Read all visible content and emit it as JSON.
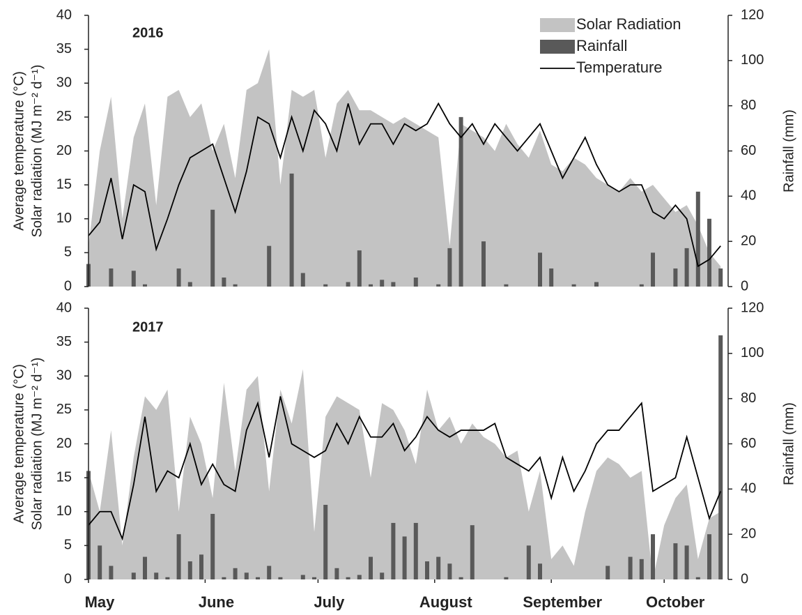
{
  "chart_data": [
    {
      "type": "combo",
      "title": "2016",
      "y_label": [
        "Average temperature (°C)",
        "Solar radiation (MJ m⁻² d⁻¹)"
      ],
      "y2_label": "Rainfall (mm)",
      "x": [
        0,
        3,
        6,
        9,
        12,
        15,
        18,
        21,
        24,
        27,
        30,
        33,
        36,
        39,
        42,
        45,
        48,
        51,
        54,
        57,
        60,
        63,
        66,
        69,
        72,
        75,
        78,
        81,
        84,
        87,
        90,
        93,
        96,
        99,
        102,
        105,
        108,
        111,
        114,
        117,
        120,
        123,
        126,
        129,
        132,
        135,
        138,
        141,
        144,
        147,
        150,
        153,
        156,
        159,
        162,
        165,
        168
      ],
      "xlim": [
        0,
        170
      ],
      "ylim": [
        0,
        40
      ],
      "yticks": [
        0,
        5,
        10,
        15,
        20,
        25,
        30,
        35,
        40
      ],
      "y2lim": [
        0,
        120
      ],
      "y2ticks": [
        0,
        20,
        40,
        60,
        80,
        100,
        120
      ],
      "legend": "top-right",
      "series": [
        {
          "name": "Solar Radiation",
          "type": "area",
          "color": "#c3c3c3",
          "axis": "y",
          "values": [
            6,
            20,
            28,
            10,
            22,
            27,
            12,
            28,
            29,
            25,
            27,
            20,
            24,
            16,
            29,
            30,
            35,
            15,
            29,
            28,
            29,
            19,
            27,
            29,
            26,
            26,
            25,
            24,
            25,
            24,
            23,
            22,
            6,
            24,
            23,
            22,
            20,
            24,
            21,
            19,
            23,
            18,
            17,
            19,
            18,
            16,
            15,
            14,
            16,
            14,
            15,
            13,
            11,
            12,
            9,
            5,
            3
          ]
        },
        {
          "name": "Rainfall",
          "type": "bar",
          "color": "#595959",
          "axis": "y2",
          "values": [
            10,
            0,
            8,
            0,
            7,
            1,
            0,
            0,
            8,
            2,
            0,
            34,
            4,
            1,
            0,
            0,
            18,
            0,
            50,
            6,
            0,
            1,
            0,
            2,
            16,
            1,
            3,
            2,
            0,
            4,
            0,
            1,
            17,
            75,
            0,
            20,
            0,
            1,
            0,
            0,
            15,
            8,
            0,
            1,
            0,
            2,
            0,
            0,
            0,
            1,
            15,
            0,
            8,
            17,
            42,
            30,
            8
          ]
        },
        {
          "name": "Temperature",
          "type": "line",
          "color": "#000000",
          "axis": "y",
          "values": [
            7.5,
            9.5,
            16,
            7,
            15,
            14,
            5.5,
            10,
            15,
            19,
            20,
            21,
            16,
            11,
            17,
            25,
            24,
            19,
            25,
            20,
            26,
            24,
            20,
            27,
            21,
            24,
            24,
            21,
            24,
            23,
            24,
            27,
            24,
            22,
            24,
            21,
            24,
            22,
            20,
            22,
            24,
            20,
            16,
            19,
            22,
            18,
            15,
            14,
            15,
            15,
            11,
            10,
            12,
            10,
            3,
            4,
            6
          ]
        }
      ]
    },
    {
      "type": "combo",
      "title": "2017",
      "y_label": [
        "Average temperature (°C)",
        "Solar radiation (MJ m⁻² d⁻¹)"
      ],
      "y2_label": "Rainfall (mm)",
      "x": [
        0,
        3,
        6,
        9,
        12,
        15,
        18,
        21,
        24,
        27,
        30,
        33,
        36,
        39,
        42,
        45,
        48,
        51,
        54,
        57,
        60,
        63,
        66,
        69,
        72,
        75,
        78,
        81,
        84,
        87,
        90,
        93,
        96,
        99,
        102,
        105,
        108,
        111,
        114,
        117,
        120,
        123,
        126,
        129,
        132,
        135,
        138,
        141,
        144,
        147,
        150,
        153,
        156,
        159,
        162,
        165,
        168
      ],
      "xlim": [
        0,
        170
      ],
      "xticks": [
        {
          "value": 0,
          "label": "May"
        },
        {
          "value": 31,
          "label": "June"
        },
        {
          "value": 61,
          "label": "July"
        },
        {
          "value": 92,
          "label": "August"
        },
        {
          "value": 123,
          "label": "September"
        },
        {
          "value": 153,
          "label": "October"
        }
      ],
      "ylim": [
        0,
        40
      ],
      "yticks": [
        0,
        5,
        10,
        15,
        20,
        25,
        30,
        35,
        40
      ],
      "y2lim": [
        0,
        120
      ],
      "y2ticks": [
        0,
        20,
        40,
        60,
        80,
        100,
        120
      ],
      "series": [
        {
          "type": "area",
          "color": "#c3c3c3",
          "axis": "y",
          "values": [
            16,
            10,
            22,
            5,
            18,
            27,
            25,
            28,
            10,
            24,
            20,
            12,
            29,
            16,
            28,
            30,
            13,
            28,
            23,
            31,
            7,
            24,
            27,
            26,
            25,
            15,
            26,
            25,
            22,
            17,
            28,
            22,
            24,
            20,
            23,
            21,
            20,
            18,
            19,
            10,
            16,
            3,
            5,
            2,
            10,
            16,
            18,
            17,
            15,
            16,
            0,
            8,
            12,
            14,
            3,
            9,
            10
          ]
        },
        {
          "type": "bar",
          "color": "#595959",
          "axis": "y2",
          "values": [
            48,
            15,
            6,
            0,
            3,
            10,
            3,
            1,
            20,
            8,
            11,
            29,
            1,
            5,
            3,
            1,
            6,
            1,
            0,
            2,
            1,
            33,
            5,
            1,
            2,
            10,
            3,
            25,
            19,
            25,
            8,
            10,
            7,
            1,
            24,
            0,
            0,
            1,
            0,
            15,
            7,
            0,
            0,
            0,
            0,
            0,
            6,
            0,
            10,
            9,
            20,
            0,
            16,
            15,
            1,
            20,
            108
          ]
        },
        {
          "type": "line",
          "color": "#000000",
          "axis": "y",
          "values": [
            8,
            10,
            10,
            6,
            14,
            24,
            13,
            16,
            15,
            20,
            14,
            17,
            14,
            13,
            22,
            26,
            18,
            27,
            20,
            19,
            18,
            19,
            23,
            20,
            24,
            21,
            21,
            23,
            19,
            21,
            24,
            22,
            21,
            22,
            22,
            22,
            23,
            18,
            17,
            16,
            18,
            12,
            18,
            13,
            16,
            20,
            22,
            22,
            24,
            26,
            13,
            14,
            15,
            21,
            15,
            9,
            13
          ]
        }
      ]
    }
  ]
}
